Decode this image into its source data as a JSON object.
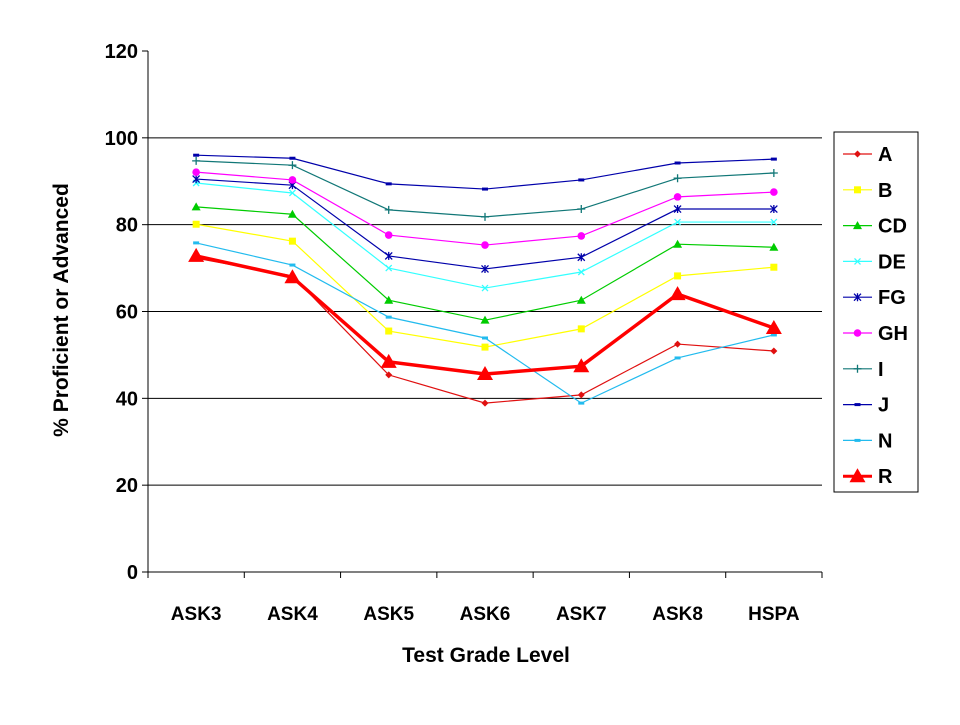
{
  "chart_data": {
    "type": "line",
    "title": "",
    "xlabel": "Test Grade Level",
    "ylabel": "% Proficient or Advanced",
    "ylim": [
      0,
      120
    ],
    "yticks": [
      "0",
      "20",
      "40",
      "60",
      "80",
      "100",
      "120"
    ],
    "grid": "horizontal",
    "legend_position": "right",
    "categories": [
      "ASK3",
      "ASK4",
      "ASK5",
      "ASK6",
      "ASK7",
      "ASK8",
      "HSPA"
    ],
    "series": [
      {
        "name": "A",
        "color": "#E01010",
        "marker": "diamond",
        "values": [
          72.3,
          68.2,
          45.4,
          38.9,
          40.8,
          52.5,
          50.9
        ]
      },
      {
        "name": "B",
        "color": "#FFFF00",
        "marker": "square",
        "values": [
          80.1,
          76.2,
          55.5,
          51.8,
          56.0,
          68.2,
          70.2
        ]
      },
      {
        "name": "CD",
        "color": "#00CC00",
        "marker": "triangle",
        "values": [
          84.1,
          82.4,
          62.6,
          58.0,
          62.6,
          75.5,
          74.8
        ]
      },
      {
        "name": "DE",
        "color": "#33FFFF",
        "marker": "x",
        "values": [
          89.6,
          87.3,
          70.0,
          65.4,
          69.1,
          80.6,
          80.6
        ]
      },
      {
        "name": "FG",
        "color": "#0000AA",
        "marker": "star",
        "values": [
          90.5,
          89.1,
          72.8,
          69.8,
          72.5,
          83.6,
          83.6
        ]
      },
      {
        "name": "GH",
        "color": "#FF00FF",
        "marker": "circle",
        "values": [
          92.1,
          90.3,
          77.6,
          75.3,
          77.4,
          86.4,
          87.5
        ]
      },
      {
        "name": "I",
        "color": "#117777",
        "marker": "plus",
        "values": [
          94.7,
          93.7,
          83.4,
          81.8,
          83.6,
          90.7,
          91.9
        ]
      },
      {
        "name": "J",
        "color": "#0000AA",
        "marker": "dash",
        "values": [
          96.0,
          95.3,
          89.4,
          88.2,
          90.3,
          94.2,
          95.1
        ]
      },
      {
        "name": "N",
        "color": "#22BBEE",
        "marker": "dash",
        "values": [
          75.8,
          70.7,
          58.7,
          53.9,
          38.9,
          49.3,
          54.6
        ]
      },
      {
        "name": "R",
        "color": "#FF0000",
        "marker": "big-triangle",
        "values": [
          72.8,
          67.9,
          48.4,
          45.6,
          47.4,
          64.0,
          56.2
        ]
      }
    ]
  }
}
